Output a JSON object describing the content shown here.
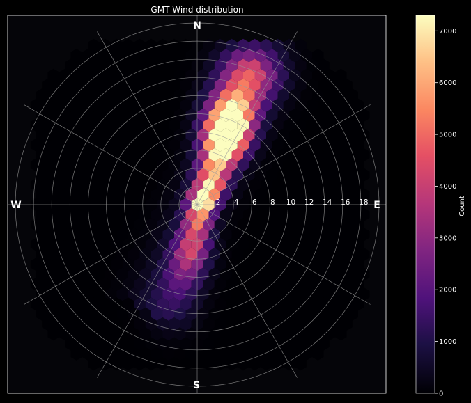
{
  "chart_data": {
    "type": "heatmap",
    "title": "GMT Wind distribution",
    "projection": "polar-hexbin",
    "compass": {
      "north": "N",
      "south": "S",
      "east": "E",
      "west": "W"
    },
    "radial_ticks": [
      "2",
      "4",
      "6",
      "8",
      "10",
      "12",
      "14",
      "16",
      "18"
    ],
    "radial_range": [
      0,
      20
    ],
    "spoke_angles_deg": [
      0,
      30,
      60,
      90,
      120,
      150,
      180,
      210,
      240,
      270,
      300,
      330
    ],
    "grid": true,
    "colormap": "magma",
    "colorbar": {
      "label": "Count",
      "ticks": [
        "0",
        "1000",
        "2000",
        "3000",
        "4000",
        "5000",
        "6000",
        "7000"
      ],
      "range": [
        0,
        7300
      ]
    },
    "hotspots": [
      {
        "x": 0.5,
        "y": 0.2,
        "count": 7200
      },
      {
        "x": 1.4,
        "y": 2.0,
        "count": 5200
      },
      {
        "x": 2.0,
        "y": 4.2,
        "count": 4200
      },
      {
        "x": 3.0,
        "y": 6.8,
        "count": 7000
      },
      {
        "x": 3.4,
        "y": 8.7,
        "count": 5600
      },
      {
        "x": 4.0,
        "y": 10.6,
        "count": 4200
      },
      {
        "x": 5.3,
        "y": 13.9,
        "count": 2800
      },
      {
        "x": 6.6,
        "y": 15.2,
        "count": 1600
      },
      {
        "x": 0.0,
        "y": -2.0,
        "count": 4000
      },
      {
        "x": -0.5,
        "y": -4.4,
        "count": 3000
      },
      {
        "x": -1.0,
        "y": -6.3,
        "count": 2000
      },
      {
        "x": -1.7,
        "y": -8.5,
        "count": 1300
      },
      {
        "x": -2.8,
        "y": -11.5,
        "count": 800
      }
    ]
  }
}
